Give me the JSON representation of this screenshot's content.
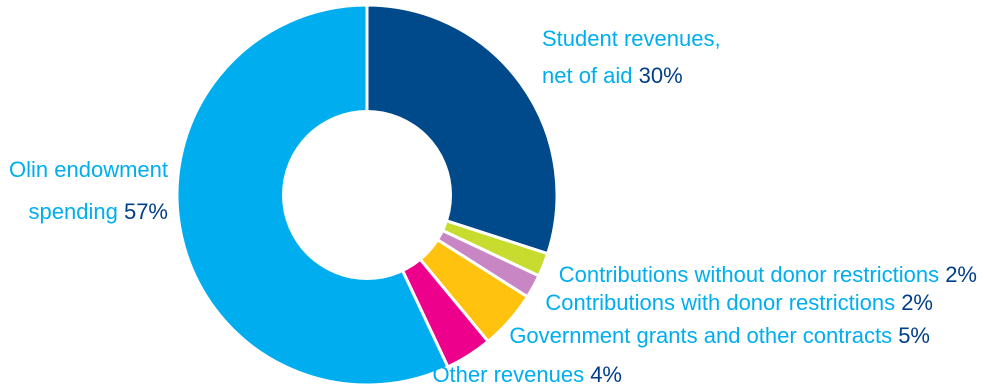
{
  "chart_data": {
    "type": "pie",
    "donut": true,
    "title": "",
    "legend": "none",
    "slices": [
      {
        "label": "Student revenues, net of aid",
        "label_lines": [
          "Student revenues,",
          "net of aid"
        ],
        "value": 30,
        "value_text": "30%",
        "color": "#004a8c"
      },
      {
        "label": "Contributions without donor restrictions",
        "label_lines": [
          "Contributions without donor restrictions"
        ],
        "value": 2,
        "value_text": "2%",
        "color": "#c7dc2e"
      },
      {
        "label": "Contributions with donor restrictions",
        "label_lines": [
          "Contributions with donor restrictions"
        ],
        "value": 2,
        "value_text": "2%",
        "color": "#c986c4"
      },
      {
        "label": "Government grants and other contracts",
        "label_lines": [
          "Government grants and other contracts"
        ],
        "value": 5,
        "value_text": "5%",
        "color": "#ffc20e"
      },
      {
        "label": "Other revenues",
        "label_lines": [
          "Other revenues"
        ],
        "value": 4,
        "value_text": "4%",
        "color": "#ec008c"
      },
      {
        "label": "Olin endowment spending",
        "label_lines": [
          "Olin endowment",
          "spending"
        ],
        "value": 57,
        "value_text": "57%",
        "color": "#00aeef"
      }
    ],
    "label_color": "#00aeef",
    "value_color": "#003f87"
  }
}
